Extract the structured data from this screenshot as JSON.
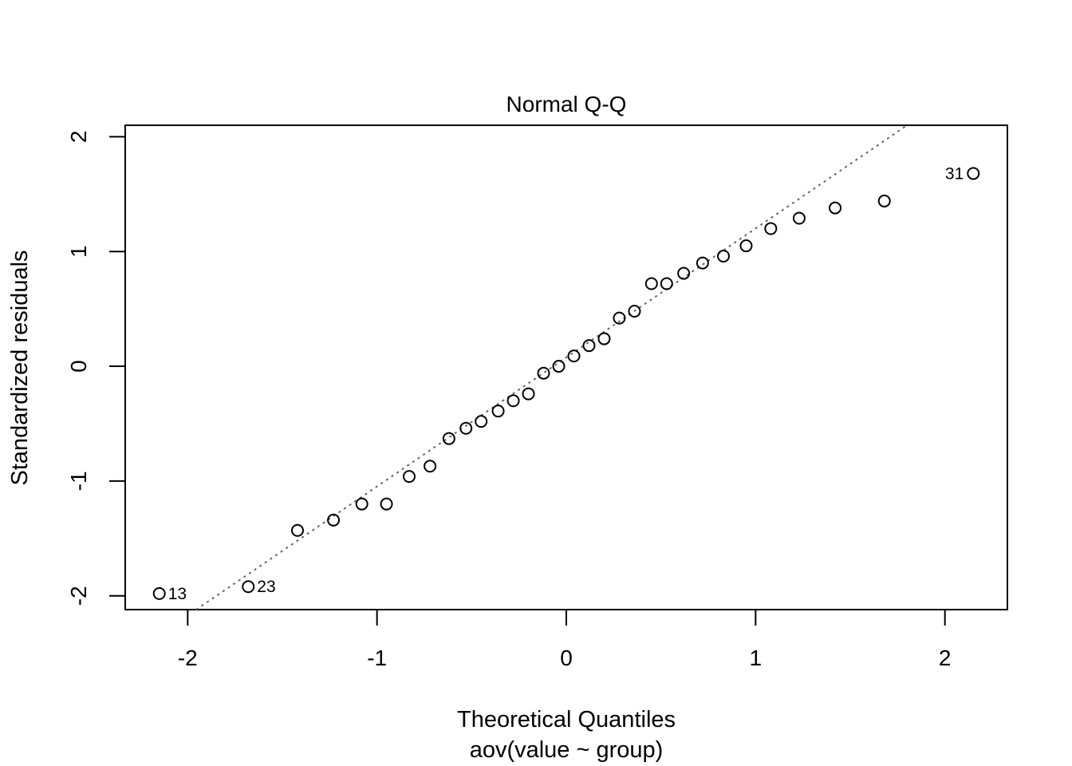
{
  "chart_data": {
    "type": "scatter",
    "title": "Normal Q-Q",
    "xlabel": "Theoretical Quantiles",
    "subtitle": "aov(value ~ group)",
    "ylabel": "Standardized residuals",
    "xlim": [
      -2.33,
      2.33
    ],
    "ylim": [
      -2.12,
      2.1
    ],
    "x_ticks": [
      -2,
      -1,
      0,
      1,
      2
    ],
    "y_ticks": [
      -2,
      -1,
      0,
      1,
      2
    ],
    "x_tick_labels": [
      "-2",
      "-1",
      "0",
      "1",
      "2"
    ],
    "y_tick_labels": [
      "-2",
      "-1",
      "0",
      "1",
      "2"
    ],
    "reference_line": {
      "style": "dotted",
      "color": "#666666",
      "through": [
        [
          -1.955,
          -2.12
        ],
        [
          1.8,
          2.1
        ]
      ]
    },
    "points": [
      {
        "x": -2.15,
        "y": -1.98,
        "label": "13"
      },
      {
        "x": -1.68,
        "y": -1.92,
        "label": "23"
      },
      {
        "x": -1.42,
        "y": -1.43
      },
      {
        "x": -1.23,
        "y": -1.34
      },
      {
        "x": -1.08,
        "y": -1.2
      },
      {
        "x": -0.95,
        "y": -1.2
      },
      {
        "x": -0.83,
        "y": -0.96
      },
      {
        "x": -0.72,
        "y": -0.87
      },
      {
        "x": -0.62,
        "y": -0.63
      },
      {
        "x": -0.53,
        "y": -0.54
      },
      {
        "x": -0.45,
        "y": -0.48
      },
      {
        "x": -0.36,
        "y": -0.39
      },
      {
        "x": -0.28,
        "y": -0.3
      },
      {
        "x": -0.2,
        "y": -0.24
      },
      {
        "x": -0.12,
        "y": -0.06
      },
      {
        "x": -0.04,
        "y": 0.0
      },
      {
        "x": 0.04,
        "y": 0.09
      },
      {
        "x": 0.12,
        "y": 0.18
      },
      {
        "x": 0.2,
        "y": 0.24
      },
      {
        "x": 0.28,
        "y": 0.42
      },
      {
        "x": 0.36,
        "y": 0.48
      },
      {
        "x": 0.45,
        "y": 0.72
      },
      {
        "x": 0.53,
        "y": 0.72
      },
      {
        "x": 0.62,
        "y": 0.81
      },
      {
        "x": 0.72,
        "y": 0.9
      },
      {
        "x": 0.83,
        "y": 0.96
      },
      {
        "x": 0.95,
        "y": 1.05
      },
      {
        "x": 1.08,
        "y": 1.2
      },
      {
        "x": 1.23,
        "y": 1.29
      },
      {
        "x": 1.42,
        "y": 1.38
      },
      {
        "x": 1.68,
        "y": 1.44
      },
      {
        "x": 2.15,
        "y": 1.68,
        "label": "31"
      }
    ]
  }
}
